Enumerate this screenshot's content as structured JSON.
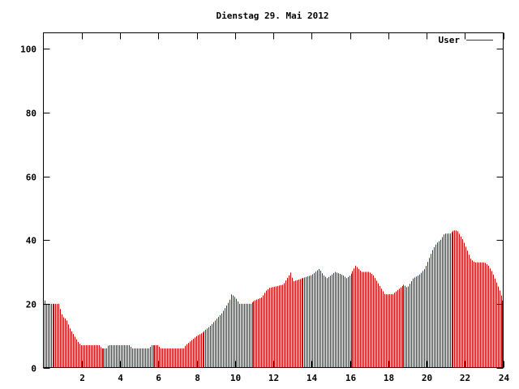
{
  "chart_data": {
    "type": "bar",
    "title": "Dienstag 29. Mai 2012",
    "xlabel": "",
    "ylabel": "",
    "xlim": [
      0,
      24
    ],
    "ylim": [
      0,
      105
    ],
    "xticks": [
      2,
      4,
      6,
      8,
      10,
      12,
      14,
      16,
      18,
      20,
      22,
      24
    ],
    "yticks": [
      0,
      20,
      40,
      60,
      80,
      100
    ],
    "grid": false,
    "legend_position": "top-right",
    "bar_color": "#cc0000",
    "series": [
      {
        "name": "User",
        "knots": [
          [
            0.05,
            21
          ],
          [
            0.1,
            20
          ],
          [
            0.8,
            20
          ],
          [
            0.9,
            18
          ],
          [
            1.0,
            16
          ],
          [
            1.2,
            15
          ],
          [
            1.4,
            12
          ],
          [
            1.6,
            10
          ],
          [
            1.8,
            8
          ],
          [
            1.95,
            7
          ],
          [
            2.4,
            7
          ],
          [
            2.9,
            7
          ],
          [
            3.0,
            6
          ],
          [
            3.3,
            6
          ],
          [
            3.4,
            7
          ],
          [
            4.5,
            7
          ],
          [
            4.6,
            6
          ],
          [
            5.5,
            6
          ],
          [
            5.6,
            7
          ],
          [
            6.0,
            7
          ],
          [
            6.1,
            6
          ],
          [
            7.3,
            6
          ],
          [
            7.4,
            7
          ],
          [
            7.6,
            8
          ],
          [
            8.0,
            10
          ],
          [
            8.3,
            11
          ],
          [
            8.5,
            12
          ],
          [
            8.7,
            13
          ],
          [
            9.0,
            15
          ],
          [
            9.3,
            17
          ],
          [
            9.5,
            19
          ],
          [
            9.7,
            21
          ],
          [
            9.8,
            23
          ],
          [
            10.0,
            22
          ],
          [
            10.1,
            21
          ],
          [
            10.2,
            20
          ],
          [
            10.8,
            20
          ],
          [
            11.0,
            21
          ],
          [
            11.4,
            22
          ],
          [
            11.6,
            24
          ],
          [
            11.8,
            25
          ],
          [
            12.5,
            26
          ],
          [
            12.7,
            28
          ],
          [
            12.9,
            30
          ],
          [
            13.0,
            27
          ],
          [
            13.5,
            28
          ],
          [
            14.0,
            29
          ],
          [
            14.2,
            30
          ],
          [
            14.4,
            31
          ],
          [
            14.6,
            29
          ],
          [
            14.8,
            28
          ],
          [
            15.0,
            29
          ],
          [
            15.2,
            30
          ],
          [
            15.6,
            29
          ],
          [
            15.8,
            28
          ],
          [
            16.0,
            29
          ],
          [
            16.1,
            30
          ],
          [
            16.3,
            32
          ],
          [
            16.6,
            30
          ],
          [
            17.0,
            30
          ],
          [
            17.2,
            29
          ],
          [
            17.4,
            27
          ],
          [
            17.6,
            25
          ],
          [
            17.8,
            23
          ],
          [
            18.2,
            23
          ],
          [
            18.4,
            24
          ],
          [
            18.6,
            25
          ],
          [
            18.8,
            26
          ],
          [
            19.0,
            25
          ],
          [
            19.1,
            26
          ],
          [
            19.3,
            28
          ],
          [
            19.6,
            29
          ],
          [
            19.9,
            31
          ],
          [
            20.1,
            34
          ],
          [
            20.3,
            37
          ],
          [
            20.5,
            39
          ],
          [
            20.7,
            40
          ],
          [
            20.9,
            42
          ],
          [
            21.2,
            42
          ],
          [
            21.4,
            43
          ],
          [
            21.6,
            43
          ],
          [
            21.7,
            42
          ],
          [
            21.9,
            40
          ],
          [
            22.1,
            37
          ],
          [
            22.3,
            34
          ],
          [
            22.5,
            33
          ],
          [
            22.7,
            33
          ],
          [
            23.0,
            33
          ],
          [
            23.2,
            32
          ],
          [
            23.4,
            30
          ],
          [
            23.6,
            27
          ],
          [
            23.8,
            24
          ],
          [
            23.95,
            21
          ]
        ]
      }
    ]
  }
}
